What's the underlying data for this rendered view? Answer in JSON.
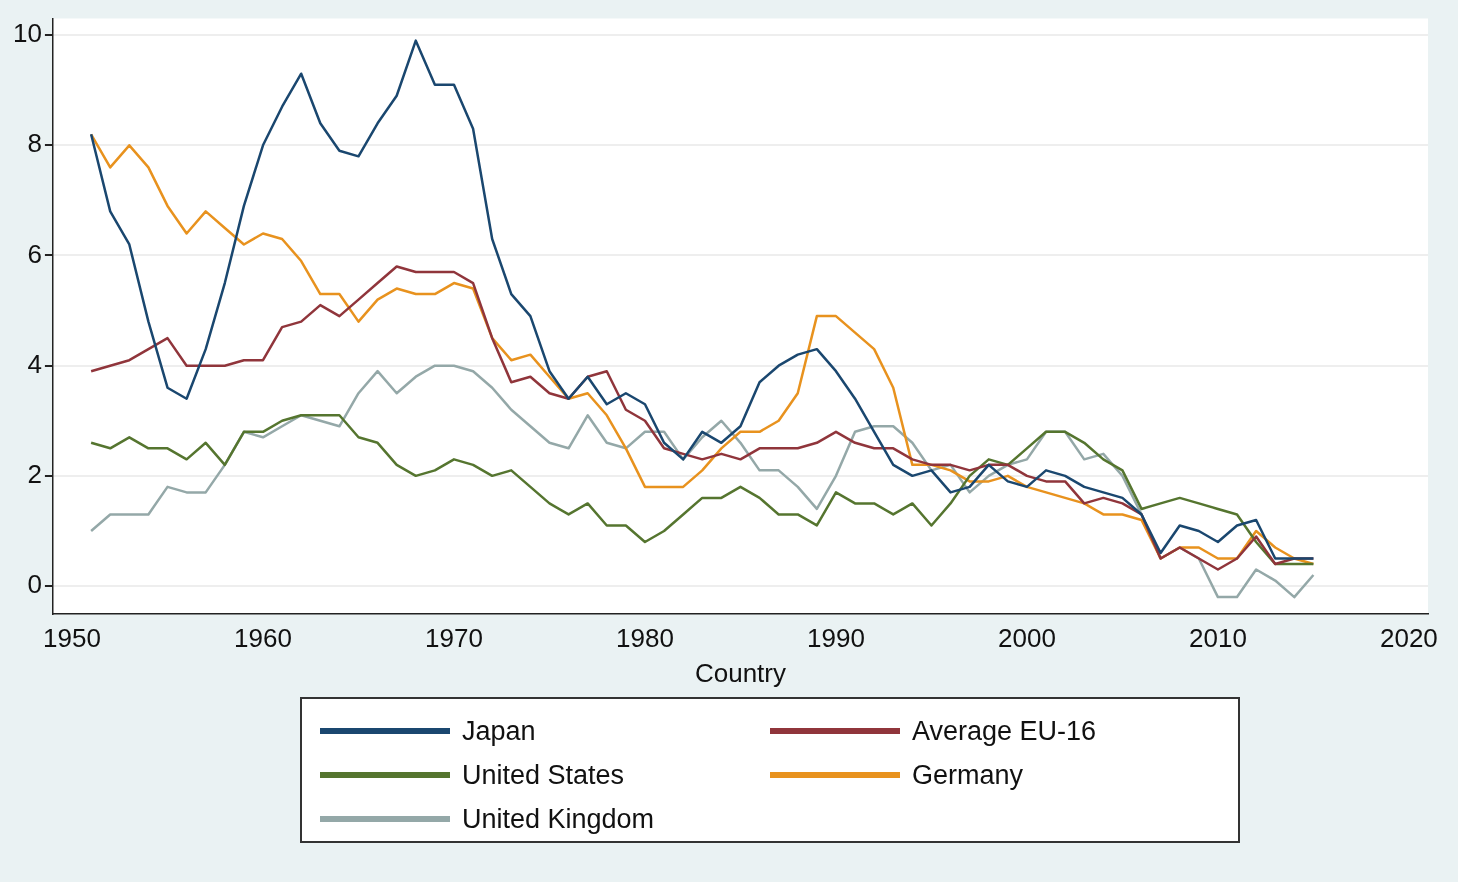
{
  "chart_data": {
    "type": "line",
    "xlabel": "Country",
    "x": [
      1951,
      1952,
      1953,
      1954,
      1955,
      1956,
      1957,
      1958,
      1959,
      1960,
      1961,
      1962,
      1963,
      1964,
      1965,
      1966,
      1967,
      1968,
      1969,
      1970,
      1971,
      1972,
      1973,
      1974,
      1975,
      1976,
      1977,
      1978,
      1979,
      1980,
      1981,
      1982,
      1983,
      1984,
      1985,
      1986,
      1987,
      1988,
      1989,
      1990,
      1991,
      1992,
      1993,
      1994,
      1995,
      1996,
      1997,
      1998,
      1999,
      2000,
      2001,
      2002,
      2003,
      2004,
      2005,
      2006,
      2007,
      2008,
      2009,
      2010,
      2011,
      2012,
      2013,
      2014,
      2015
    ],
    "series": [
      {
        "name": "Japan",
        "color": "#1a476f",
        "values": [
          8.2,
          6.8,
          6.2,
          4.8,
          3.6,
          3.4,
          4.3,
          5.5,
          6.9,
          8.0,
          8.7,
          9.3,
          8.4,
          7.9,
          7.8,
          8.4,
          8.9,
          9.9,
          9.1,
          9.1,
          8.3,
          6.3,
          5.3,
          4.9,
          3.9,
          3.4,
          3.8,
          3.3,
          3.5,
          3.3,
          2.6,
          2.3,
          2.8,
          2.6,
          2.9,
          3.7,
          4.0,
          4.2,
          4.3,
          3.9,
          3.4,
          2.8,
          2.2,
          2.0,
          2.1,
          1.7,
          1.8,
          2.2,
          1.9,
          1.8,
          2.1,
          2.0,
          1.8,
          1.7,
          1.6,
          1.3,
          0.6,
          1.1,
          1.0,
          0.8,
          1.1,
          1.2,
          0.5,
          0.5,
          0.5
        ]
      },
      {
        "name": "Average EU-16",
        "color": "#90353b",
        "values": [
          3.9,
          4.0,
          4.1,
          4.3,
          4.5,
          4.0,
          4.0,
          4.0,
          4.1,
          4.1,
          4.7,
          4.8,
          5.1,
          4.9,
          5.2,
          5.5,
          5.8,
          5.7,
          5.7,
          5.7,
          5.5,
          4.5,
          3.7,
          3.8,
          3.5,
          3.4,
          3.8,
          3.9,
          3.2,
          3.0,
          2.5,
          2.4,
          2.3,
          2.4,
          2.3,
          2.5,
          2.5,
          2.5,
          2.6,
          2.8,
          2.6,
          2.5,
          2.5,
          2.3,
          2.2,
          2.2,
          2.1,
          2.2,
          2.2,
          2.0,
          1.9,
          1.9,
          1.5,
          1.6,
          1.5,
          1.3,
          0.5,
          0.7,
          0.5,
          0.3,
          0.5,
          0.9,
          0.4,
          0.5,
          0.5
        ]
      },
      {
        "name": "United States",
        "color": "#55752f",
        "values": [
          2.6,
          2.5,
          2.7,
          2.5,
          2.5,
          2.3,
          2.6,
          2.2,
          2.8,
          2.8,
          3.0,
          3.1,
          3.1,
          3.1,
          2.7,
          2.6,
          2.2,
          2.0,
          2.1,
          2.3,
          2.2,
          2.0,
          2.1,
          1.8,
          1.5,
          1.3,
          1.5,
          1.1,
          1.1,
          0.8,
          1.0,
          1.3,
          1.6,
          1.6,
          1.8,
          1.6,
          1.3,
          1.3,
          1.1,
          1.7,
          1.5,
          1.5,
          1.3,
          1.5,
          1.1,
          1.5,
          2.0,
          2.3,
          2.2,
          2.5,
          2.8,
          2.8,
          2.6,
          2.3,
          2.1,
          1.4,
          1.5,
          1.6,
          1.5,
          1.4,
          1.3,
          0.8,
          0.4,
          0.4,
          0.4
        ]
      },
      {
        "name": "Germany",
        "color": "#e8921e",
        "values": [
          8.2,
          7.6,
          8.0,
          7.6,
          6.9,
          6.4,
          6.8,
          6.5,
          6.2,
          6.4,
          6.3,
          5.9,
          5.3,
          5.3,
          4.8,
          5.2,
          5.4,
          5.3,
          5.3,
          5.5,
          5.4,
          4.5,
          4.1,
          4.2,
          3.8,
          3.4,
          3.5,
          3.1,
          2.5,
          1.8,
          1.8,
          1.8,
          2.1,
          2.5,
          2.8,
          2.8,
          3.0,
          3.5,
          4.9,
          4.9,
          4.6,
          4.3,
          3.6,
          2.2,
          2.2,
          2.1,
          1.9,
          1.9,
          2.0,
          1.8,
          1.7,
          1.6,
          1.5,
          1.3,
          1.3,
          1.2,
          0.5,
          0.7,
          0.7,
          0.5,
          0.5,
          1.0,
          0.7,
          0.5,
          0.4
        ]
      },
      {
        "name": "United Kingdom",
        "color": "#94a8a8",
        "values": [
          1.0,
          1.3,
          1.3,
          1.3,
          1.8,
          1.7,
          1.7,
          2.2,
          2.8,
          2.7,
          2.9,
          3.1,
          3.0,
          2.9,
          3.5,
          3.9,
          3.5,
          3.8,
          4.0,
          4.0,
          3.9,
          3.6,
          3.2,
          2.9,
          2.6,
          2.5,
          3.1,
          2.6,
          2.5,
          2.8,
          2.8,
          2.3,
          2.7,
          3.0,
          2.6,
          2.1,
          2.1,
          1.8,
          1.4,
          2.0,
          2.8,
          2.9,
          2.9,
          2.6,
          2.1,
          2.2,
          1.7,
          2.0,
          2.2,
          2.3,
          2.8,
          2.8,
          2.3,
          2.4,
          2.0,
          1.3,
          0.5,
          0.7,
          0.5,
          -0.2,
          -0.2,
          0.3,
          0.1,
          -0.2,
          0.2
        ]
      }
    ],
    "xlim": [
      1949,
      2021
    ],
    "xticks": [
      1950,
      1960,
      1970,
      1980,
      1990,
      2000,
      2010,
      2020
    ],
    "ylim": [
      -0.5,
      10.3
    ],
    "yticks": [
      0,
      2,
      4,
      6,
      8,
      10
    ],
    "grid": "y",
    "legend": "bottom",
    "marker": "none",
    "line_style": "solid"
  }
}
